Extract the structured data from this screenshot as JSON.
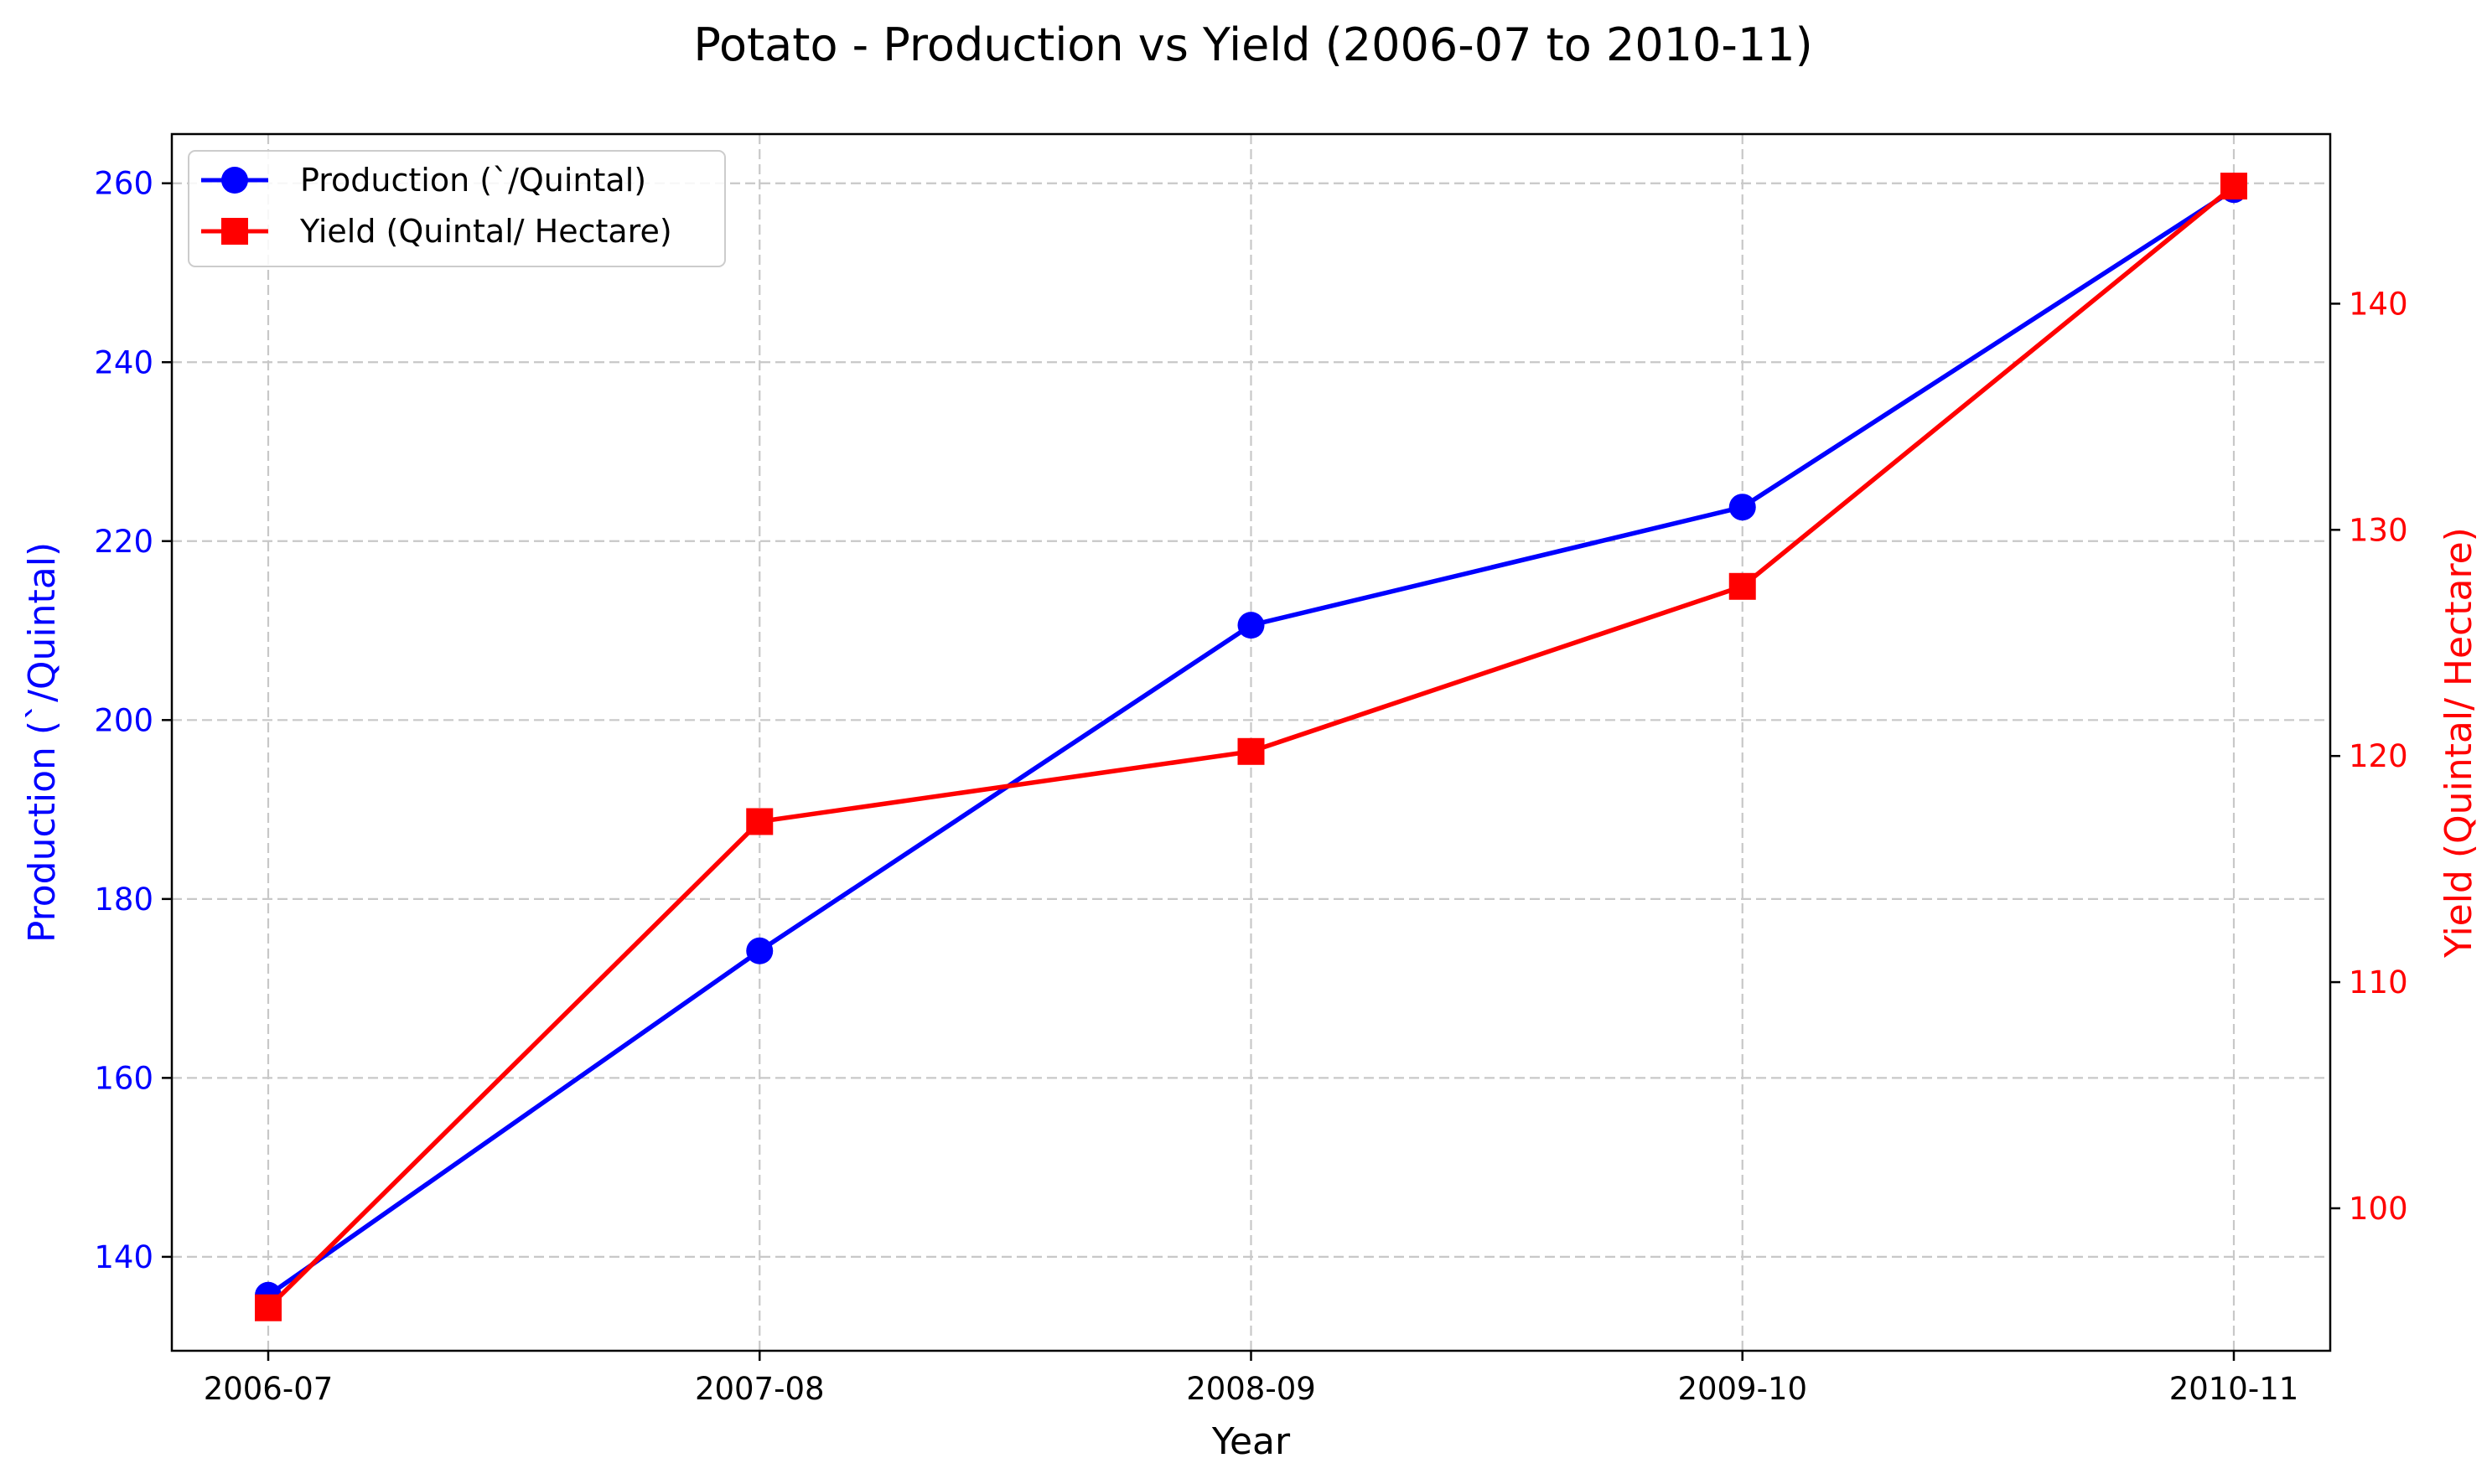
{
  "chart_data": {
    "type": "line",
    "title": "Potato - Production vs Yield (2006-07 to 2010-11)",
    "xlabel": "Year",
    "categories": [
      "2006-07",
      "2007-08",
      "2008-09",
      "2009-10",
      "2010-11"
    ],
    "grid": true,
    "legend_position": "top-left",
    "y_left": {
      "label": "Production (`/Quintal)",
      "range": [
        129.5,
        265.5
      ],
      "ticks": [
        140,
        160,
        180,
        200,
        220,
        240,
        260
      ],
      "color": "#0000ff"
    },
    "y_right": {
      "label": "Yield (Quintal/ Hectare)",
      "range": [
        93.7,
        147.5
      ],
      "ticks": [
        100,
        110,
        120,
        130,
        140
      ],
      "color": "#ff0000"
    },
    "series": [
      {
        "name": "Production (`/Quintal)",
        "axis": "left",
        "color": "#0000ff",
        "marker": "circle",
        "values": [
          135.7,
          174.2,
          210.6,
          223.8,
          259.3
        ]
      },
      {
        "name": "Yield (Quintal/ Hectare)",
        "axis": "right",
        "color": "#ff0000",
        "marker": "square",
        "values": [
          95.6,
          117.1,
          120.2,
          127.5,
          145.2
        ]
      }
    ]
  }
}
